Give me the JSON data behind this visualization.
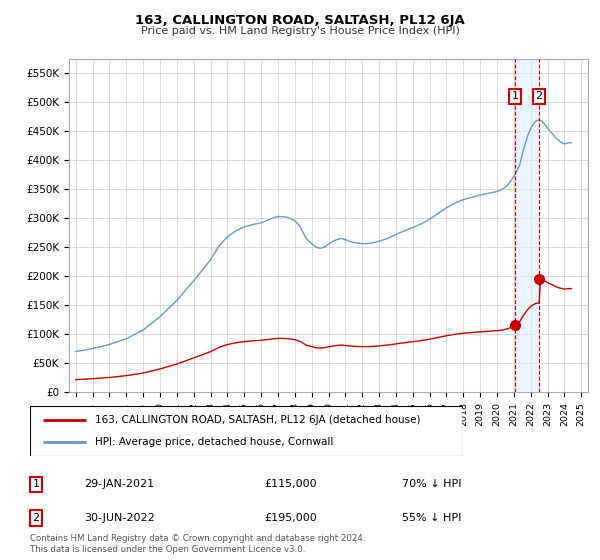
{
  "title": "163, CALLINGTON ROAD, SALTASH, PL12 6JA",
  "subtitle": "Price paid vs. HM Land Registry's House Price Index (HPI)",
  "hpi_label": "HPI: Average price, detached house, Cornwall",
  "price_label": "163, CALLINGTON ROAD, SALTASH, PL12 6JA (detached house)",
  "hpi_color": "#6699cc",
  "price_color": "#cc0000",
  "shade_color": "#ddeeff",
  "ylim": [
    0,
    580000
  ],
  "yticks": [
    0,
    50000,
    100000,
    150000,
    200000,
    250000,
    300000,
    350000,
    400000,
    450000,
    500000,
    550000
  ],
  "ytick_labels": [
    "£0",
    "£50K",
    "£100K",
    "£150K",
    "£200K",
    "£250K",
    "£300K",
    "£350K",
    "£400K",
    "£450K",
    "£500K",
    "£550K"
  ],
  "transaction1_date": "29-JAN-2021",
  "transaction1_price": 115000,
  "transaction1_hpi": "70% ↓ HPI",
  "transaction1_label": "1",
  "transaction1_year": 2021.08,
  "transaction2_date": "30-JUN-2022",
  "transaction2_price": 195000,
  "transaction2_hpi": "55% ↓ HPI",
  "transaction2_label": "2",
  "transaction2_year": 2022.5,
  "footnote": "Contains HM Land Registry data © Crown copyright and database right 2024.\nThis data is licensed under the Open Government Licence v3.0."
}
